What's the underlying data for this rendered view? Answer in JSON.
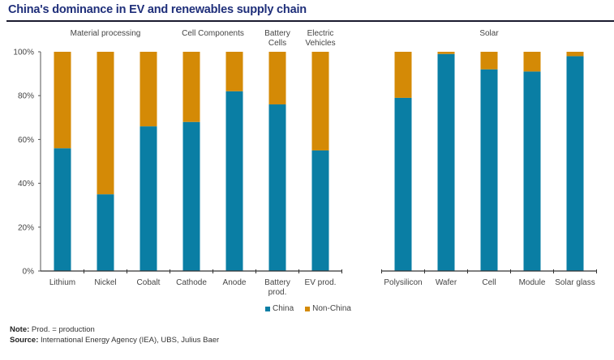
{
  "header": {
    "title": "China's dominance in EV and renewables supply chain"
  },
  "chart_data": {
    "type": "bar",
    "stacked": true,
    "title": "China's dominance in EV and renewables supply chain",
    "xlabel": "",
    "ylabel": "",
    "ylim": [
      0,
      100
    ],
    "y_ticks": [
      "0%",
      "20%",
      "40%",
      "60%",
      "80%",
      "100%"
    ],
    "y_tick_values": [
      0,
      20,
      40,
      60,
      80,
      100
    ],
    "grid": false,
    "legend_position": "bottom-center",
    "categories": [
      "Lithium",
      "Nickel",
      "Cobalt",
      "Cathode",
      "Anode",
      "Battery prod.",
      "EV prod.",
      "Polysilicon",
      "Wafer",
      "Cell",
      "Module",
      "Solar glass"
    ],
    "category_label_lines": [
      [
        "Lithium"
      ],
      [
        "Nickel"
      ],
      [
        "Cobalt"
      ],
      [
        "Cathode"
      ],
      [
        "Anode"
      ],
      [
        "Battery",
        "prod."
      ],
      [
        "EV prod."
      ],
      [
        "Polysilicon"
      ],
      [
        "Wafer"
      ],
      [
        "Cell"
      ],
      [
        "Module"
      ],
      [
        "Solar glass"
      ]
    ],
    "groups": [
      {
        "label_lines": [
          "Material processing"
        ],
        "categories": [
          "Lithium",
          "Nickel",
          "Cobalt"
        ]
      },
      {
        "label_lines": [
          "Cell Components"
        ],
        "categories": [
          "Cathode",
          "Anode"
        ]
      },
      {
        "label_lines": [
          "Battery",
          "Cells"
        ],
        "categories": [
          "Battery prod."
        ]
      },
      {
        "label_lines": [
          "Electric",
          "Vehicles"
        ],
        "categories": [
          "EV prod."
        ]
      },
      {
        "label_lines": [
          "Solar"
        ],
        "categories": [
          "Polysilicon",
          "Wafer",
          "Cell",
          "Module",
          "Solar glass"
        ]
      }
    ],
    "series": [
      {
        "name": "China",
        "color": "#0a7ea4",
        "values": [
          56,
          35,
          66,
          68,
          82,
          76,
          55,
          79,
          99,
          92,
          91,
          98
        ]
      },
      {
        "name": "Non-China",
        "color": "#d48a06",
        "values": [
          44,
          65,
          34,
          32,
          18,
          24,
          45,
          21,
          1,
          8,
          9,
          2
        ]
      }
    ]
  },
  "legend": {
    "items": [
      {
        "label": "China",
        "color": "#0a7ea4"
      },
      {
        "label": "Non-China",
        "color": "#d48a06"
      }
    ]
  },
  "footer": {
    "note_label": "Note:",
    "note_text": " Prod. = production",
    "source_label": "Source:",
    "source_text": " International Energy Agency (IEA), UBS, Julius Baer"
  }
}
